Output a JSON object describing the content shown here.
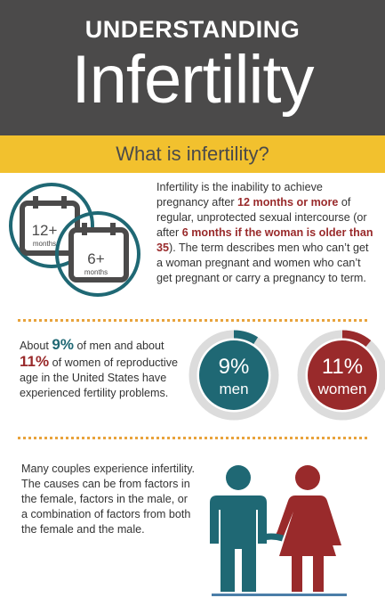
{
  "header": {
    "pre_title": "UNDERSTANDING",
    "title": "Infertility"
  },
  "banner": "What is infertility?",
  "definition": {
    "calendars": [
      {
        "number": "12+",
        "unit": "months"
      },
      {
        "number": "6+",
        "unit": "months"
      }
    ],
    "text": [
      "Infertility is the inability to achieve pregnancy after ",
      "12 months or more",
      " of regular, unprotected sexual intercourse (or after ",
      "6 months if the woman is older than 35",
      "). The term describes men who can’t get a woman pregnant and women who can’t get pregnant or carry a pregnancy to term."
    ]
  },
  "prevalence": {
    "text": [
      "About ",
      "9%",
      " of men and about ",
      "11%",
      " of women of reproductive age in the United States have experienced fertility problems."
    ],
    "stats": [
      {
        "value": 9,
        "label": "9%",
        "group": "men",
        "color": "#1f6874"
      },
      {
        "value": 11,
        "label": "11%",
        "group": "women",
        "color": "#992a2b"
      }
    ]
  },
  "causes": {
    "text": "Many couples experience infertility. The causes can be from factors in the female, factors in the male, or a combination of factors from both the female and the male."
  }
}
